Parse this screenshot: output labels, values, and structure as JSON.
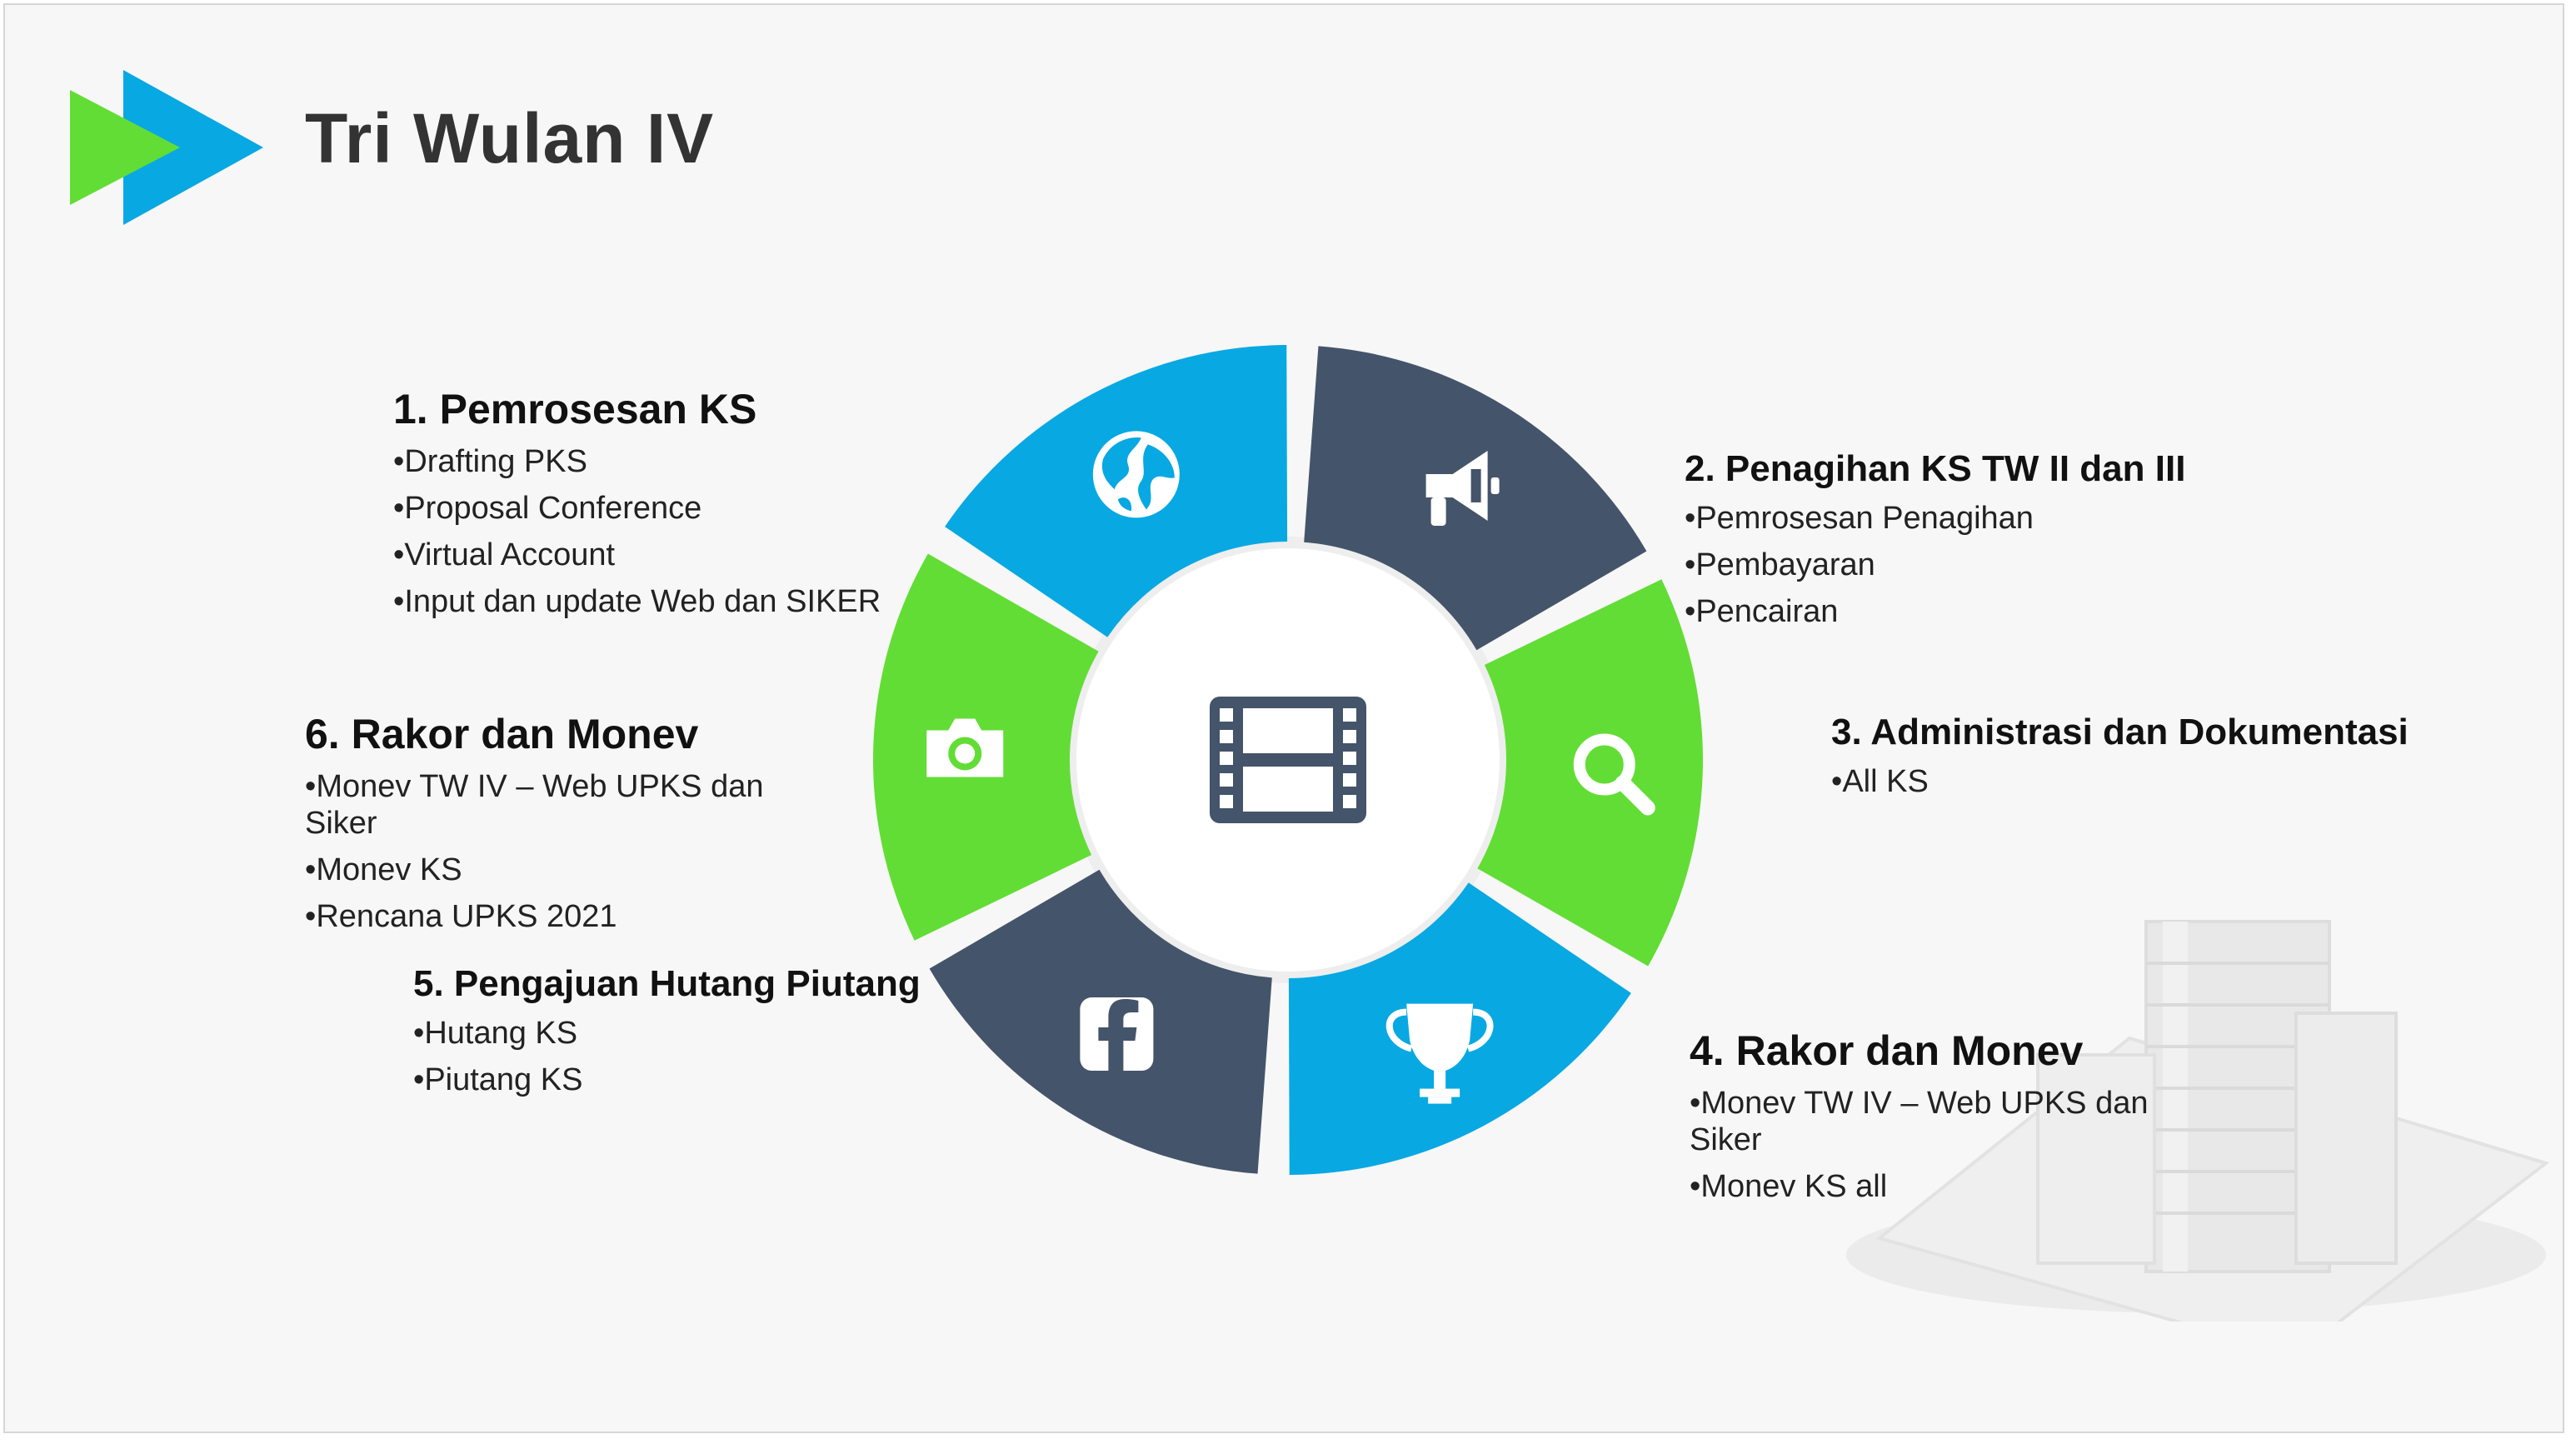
{
  "slide": {
    "title": "Tri Wulan IV",
    "colors": {
      "blue": "#08a8e3",
      "dark": "#44546a",
      "green": "#62dd35",
      "background": "#f7f7f7",
      "title": "#333333"
    }
  },
  "wheel": {
    "center_icon": "film-icon",
    "segments": [
      {
        "icon": "globe-icon",
        "color": "#08a8e3"
      },
      {
        "icon": "megaphone-icon",
        "color": "#44546a"
      },
      {
        "icon": "search-icon",
        "color": "#62dd35"
      },
      {
        "icon": "trophy-icon",
        "color": "#08a8e3"
      },
      {
        "icon": "facebook-icon",
        "color": "#44546a"
      },
      {
        "icon": "camera-icon",
        "color": "#62dd35"
      }
    ]
  },
  "items": [
    {
      "heading": "1. Pemrosesan KS",
      "bullets": [
        "Drafting PKS",
        "Proposal Conference",
        "Virtual Account",
        "Input  dan update Web dan SIKER"
      ]
    },
    {
      "heading": "2. Penagihan KS TW II dan III",
      "bullets": [
        "Pemrosesan Penagihan",
        "Pembayaran",
        "Pencairan"
      ]
    },
    {
      "heading": "3.  Administrasi dan Dokumentasi",
      "bullets": [
        "All KS"
      ]
    },
    {
      "heading": "4. Rakor dan Monev",
      "bullets": [
        "Monev TW IV – Web UPKS dan Siker",
        "Monev KS all"
      ]
    },
    {
      "heading": "5. Pengajuan Hutang Piutang",
      "bullets": [
        "Hutang KS",
        "Piutang KS"
      ]
    },
    {
      "heading": "6. Rakor dan Monev",
      "bullets": [
        "Monev TW IV – Web UPKS dan Siker",
        "Monev KS",
        "Rencana UPKS 2021"
      ]
    }
  ]
}
